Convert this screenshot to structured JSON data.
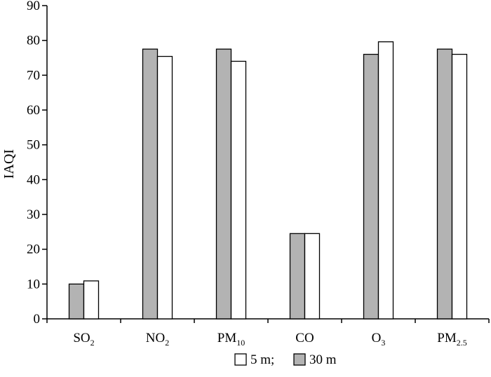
{
  "chart_data": {
    "type": "bar",
    "ylabel": "IAQI",
    "xlabel": "",
    "ylim": [
      0,
      90
    ],
    "yticks": [
      0,
      10,
      20,
      30,
      40,
      50,
      60,
      70,
      80,
      90
    ],
    "categories": [
      {
        "base": "SO",
        "sub": "2"
      },
      {
        "base": "NO",
        "sub": "2"
      },
      {
        "base": "PM",
        "sub": "10"
      },
      {
        "base": "CO",
        "sub": ""
      },
      {
        "base": "O",
        "sub": "3"
      },
      {
        "base": "PM",
        "sub": "2.5"
      }
    ],
    "series": [
      {
        "name": "30 m",
        "color": "#b3b3b3",
        "values": [
          10.0,
          77.5,
          77.5,
          24.5,
          76.0,
          77.5
        ]
      },
      {
        "name": "5 m",
        "color": "#ffffff",
        "values": [
          10.9,
          75.4,
          74.0,
          24.5,
          79.6,
          76.0
        ]
      }
    ],
    "legend": {
      "placement": "bottom-center",
      "separator": ";",
      "order": [
        "5 m",
        "30 m"
      ]
    },
    "grid": false
  }
}
